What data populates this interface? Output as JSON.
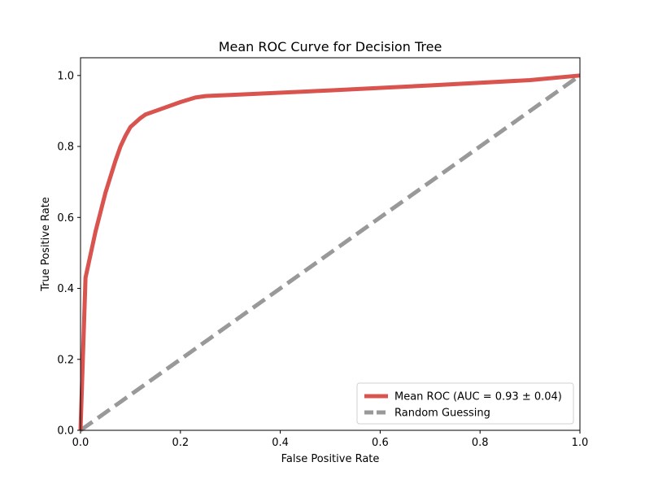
{
  "chart_data": {
    "type": "line",
    "title": "Mean ROC Curve for Decision Tree",
    "xlabel": "False Positive Rate",
    "ylabel": "True Positive Rate",
    "xlim": [
      0.0,
      1.0
    ],
    "ylim": [
      0.0,
      1.05
    ],
    "xticks": [
      "0.0",
      "0.2",
      "0.4",
      "0.6",
      "0.8",
      "1.0"
    ],
    "yticks": [
      "0.0",
      "0.2",
      "0.4",
      "0.6",
      "0.8",
      "1.0"
    ],
    "grid": false,
    "legend_position": "lower-right",
    "series": [
      {
        "name": "Mean ROC (AUC = 0.93 ± 0.04)",
        "color": "#d9534f",
        "style": "solid",
        "x": [
          0.0,
          0.01,
          0.03,
          0.05,
          0.07,
          0.08,
          0.09,
          0.1,
          0.12,
          0.13,
          0.15,
          0.2,
          0.23,
          0.25,
          0.3,
          0.5,
          0.7,
          0.9,
          1.0
        ],
        "y": [
          0.0,
          0.43,
          0.56,
          0.67,
          0.76,
          0.8,
          0.83,
          0.855,
          0.88,
          0.89,
          0.9,
          0.925,
          0.938,
          0.942,
          0.945,
          0.958,
          0.972,
          0.987,
          1.0
        ]
      },
      {
        "name": "Random Guessing",
        "color": "#999999",
        "style": "dashed",
        "x": [
          0.0,
          1.0
        ],
        "y": [
          0.0,
          1.0
        ]
      }
    ]
  }
}
